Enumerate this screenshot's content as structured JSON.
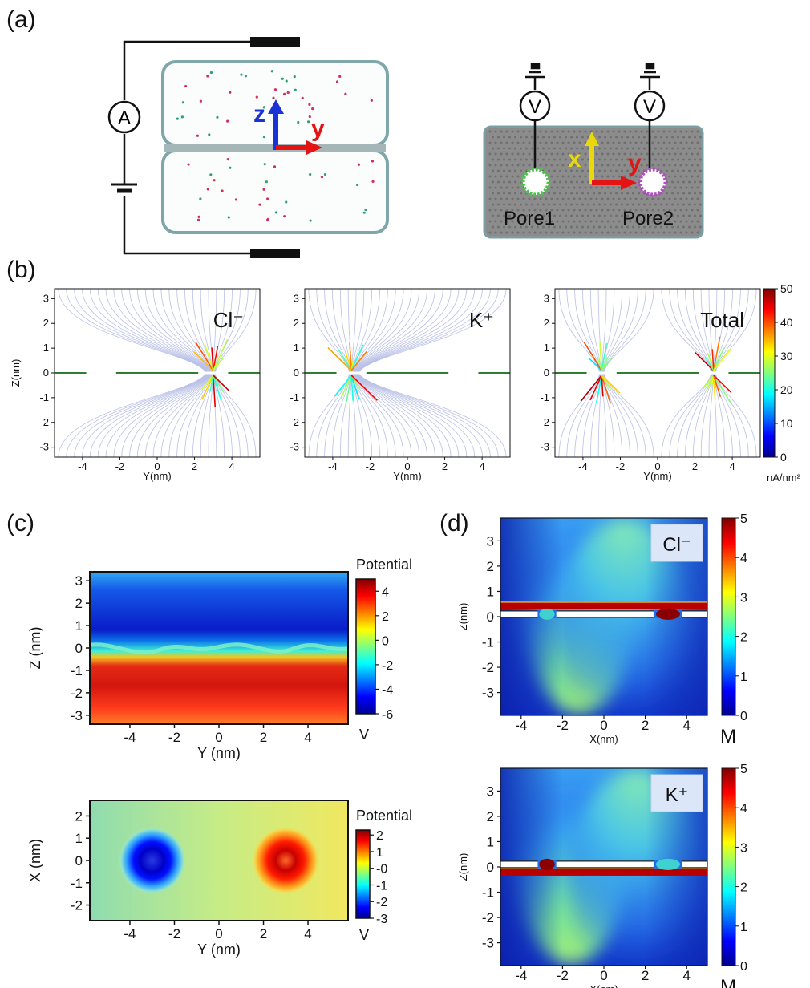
{
  "panel_labels": {
    "a": "(a)",
    "b": "(b)",
    "c": "(c)",
    "d": "(d)"
  },
  "schematic": {
    "ammeter": "A",
    "voltmeter": "V",
    "axis_z": "z",
    "axis_y": "y",
    "axis_x": "x",
    "pore1": "Pore1",
    "pore2": "Pore2",
    "colors": {
      "z": "#1a33d6",
      "y": "#e51414",
      "x": "#e8d80c",
      "pore1": "#4ec24e",
      "pore2": "#b050c0",
      "membrane": "#8c8c8c"
    }
  },
  "chart_data": [
    {
      "id": "b1",
      "type": "streamline",
      "title": "Cl⁻",
      "xlabel": "Y(nm)",
      "ylabel": "Z(nm)",
      "xlim": [
        -5.5,
        5.5
      ],
      "ylim": [
        -3.4,
        3.4
      ],
      "xticks": [
        "-4",
        "-2",
        "0",
        "2",
        "4"
      ],
      "yticks": [
        "-3",
        "-2",
        "-1",
        "0",
        "1",
        "2",
        "3"
      ],
      "membrane_segments": [
        [
          -5.5,
          -3.8
        ],
        [
          -2.2,
          2.2
        ],
        [
          3.8,
          5.5
        ]
      ],
      "pore_centers": [
        -3.0,
        3.0
      ]
    },
    {
      "id": "b2",
      "type": "streamline",
      "title": "K⁺",
      "xlabel": "Y(nm)",
      "ylabel": "",
      "xlim": [
        -5.5,
        5.5
      ],
      "ylim": [
        -3.4,
        3.4
      ],
      "xticks": [
        "-4",
        "-2",
        "0",
        "2",
        "4"
      ],
      "yticks": [
        "-3",
        "-2",
        "-1",
        "0",
        "1",
        "2",
        "3"
      ],
      "membrane_segments": [
        [
          -5.5,
          -3.8
        ],
        [
          -2.2,
          2.2
        ],
        [
          3.8,
          5.5
        ]
      ],
      "pore_centers": [
        -3.0,
        3.0
      ]
    },
    {
      "id": "b3",
      "type": "streamline",
      "title": "Total",
      "xlabel": "Y(nm)",
      "ylabel": "",
      "xlim": [
        -5.5,
        5.5
      ],
      "ylim": [
        -3.4,
        3.4
      ],
      "xticks": [
        "-4",
        "-2",
        "0",
        "2",
        "4"
      ],
      "yticks": [
        "-3",
        "-2",
        "-1",
        "0",
        "1",
        "2",
        "3"
      ],
      "membrane_segments": [
        [
          -5.5,
          -3.8
        ],
        [
          -2.2,
          2.2
        ],
        [
          3.8,
          5.5
        ]
      ],
      "pore_centers": [
        -3.0,
        3.0
      ],
      "colorbar": {
        "min": 0,
        "max": 50,
        "ticks": [
          "0",
          "10",
          "20",
          "30",
          "40",
          "50"
        ],
        "unit": "nA/nm²"
      }
    },
    {
      "id": "c1",
      "type": "heatmap",
      "xlabel": "Y (nm)",
      "ylabel": "Z (nm)",
      "xlim": [
        -5.8,
        5.8
      ],
      "ylim": [
        -3.4,
        3.4
      ],
      "xticks": [
        "-4",
        "-2",
        "0",
        "2",
        "4"
      ],
      "yticks": [
        "-3",
        "-2",
        "-1",
        "0",
        "1",
        "2",
        "3"
      ],
      "colorbar": {
        "title": "Potential",
        "unit": "V",
        "min": -6,
        "max": 5,
        "ticks": [
          "4",
          "2",
          "0",
          "-2",
          "-4",
          "-6"
        ]
      }
    },
    {
      "id": "c2",
      "type": "heatmap",
      "xlabel": "Y (nm)",
      "ylabel": "X (nm)",
      "xlim": [
        -5.8,
        5.8
      ],
      "ylim": [
        -2.7,
        2.7
      ],
      "xticks": [
        "-4",
        "-2",
        "0",
        "2",
        "4"
      ],
      "yticks": [
        "2",
        "1",
        "0",
        "-1",
        "-2"
      ],
      "pores": [
        {
          "y": -3.0,
          "x": 0.0,
          "sign": -1
        },
        {
          "y": 3.0,
          "x": 0.0,
          "sign": 1
        }
      ],
      "colorbar": {
        "title": "Potential",
        "unit": "V",
        "min": -3,
        "max": 2.3,
        "ticks": [
          "2",
          "1",
          "-0",
          "-1",
          "-2",
          "-3"
        ]
      }
    },
    {
      "id": "d1",
      "type": "heatmap",
      "title": "Cl⁻",
      "xlabel": "X(nm)",
      "ylabel": "Z(nm)",
      "xlim": [
        -5,
        5
      ],
      "ylim": [
        -3.9,
        3.9
      ],
      "xticks": [
        "-4",
        "-2",
        "0",
        "2",
        "4"
      ],
      "yticks": [
        "3",
        "2",
        "1",
        "0",
        "-1",
        "-2",
        "-3"
      ],
      "colorbar": {
        "unit": "M",
        "min": 0,
        "max": 5,
        "ticks": [
          "5",
          "4",
          "3",
          "2",
          "1",
          "0"
        ]
      }
    },
    {
      "id": "d2",
      "type": "heatmap",
      "title": "K⁺",
      "xlabel": "X(nm)",
      "ylabel": "Z(nm)",
      "xlim": [
        -5,
        5
      ],
      "ylim": [
        -3.9,
        3.9
      ],
      "xticks": [
        "-4",
        "-2",
        "0",
        "2",
        "4"
      ],
      "yticks": [
        "3",
        "2",
        "1",
        "0",
        "-1",
        "-2",
        "-3"
      ],
      "colorbar": {
        "unit": "M",
        "min": 0,
        "max": 5,
        "ticks": [
          "5",
          "4",
          "3",
          "2",
          "1",
          "0"
        ]
      }
    }
  ]
}
